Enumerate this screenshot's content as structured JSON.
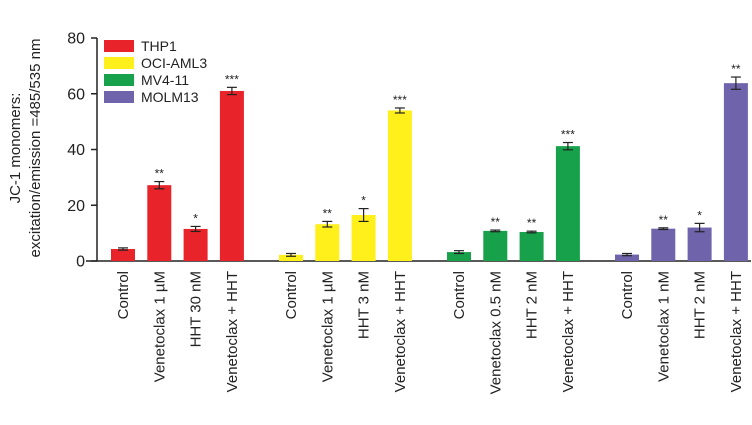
{
  "chart_data": {
    "type": "bar",
    "ylabel_line1": "JC-1 monomers:",
    "ylabel_line2": "excitation/emission =485/535 nm",
    "ylim": [
      0,
      80
    ],
    "yticks": [
      0,
      20,
      40,
      60,
      80
    ],
    "grid": false,
    "legend_position": "top-left",
    "groups": [
      {
        "name": "THP1",
        "color": "#e8232a",
        "bars": [
          {
            "label": "Control",
            "value": 4.3,
            "error": 0.4,
            "sig": ""
          },
          {
            "label": "Venetoclax 1 µM",
            "value": 27.2,
            "error": 1.3,
            "sig": "**"
          },
          {
            "label": "HHT 30 nM",
            "value": 11.5,
            "error": 0.9,
            "sig": "*"
          },
          {
            "label": "Venetoclax + HHT",
            "value": 61.0,
            "error": 1.3,
            "sig": "***"
          }
        ]
      },
      {
        "name": "OCI-AML3",
        "color": "#ffef1a",
        "bars": [
          {
            "label": "Control",
            "value": 2.2,
            "error": 0.5,
            "sig": ""
          },
          {
            "label": "Venetoclax 1 µM",
            "value": 13.2,
            "error": 1.0,
            "sig": "**"
          },
          {
            "label": "HHT 3 nM",
            "value": 16.5,
            "error": 2.3,
            "sig": "*"
          },
          {
            "label": "Venetoclax + HHT",
            "value": 54.0,
            "error": 0.9,
            "sig": "***"
          }
        ]
      },
      {
        "name": "MV4-11",
        "color": "#17a14a",
        "bars": [
          {
            "label": "Control",
            "value": 3.2,
            "error": 0.5,
            "sig": ""
          },
          {
            "label": "Venetoclax 0.5 nM",
            "value": 10.8,
            "error": 0.3,
            "sig": "**"
          },
          {
            "label": "HHT 2 nM",
            "value": 10.4,
            "error": 0.3,
            "sig": "**"
          },
          {
            "label": "Venetoclax + HHT",
            "value": 41.2,
            "error": 1.3,
            "sig": "***"
          }
        ]
      },
      {
        "name": "MOLM13",
        "color": "#6f64ab",
        "bars": [
          {
            "label": "Control",
            "value": 2.3,
            "error": 0.4,
            "sig": ""
          },
          {
            "label": "Venetoclax 1 nM",
            "value": 11.6,
            "error": 0.3,
            "sig": "**"
          },
          {
            "label": "HHT 2 nM",
            "value": 12.0,
            "error": 1.5,
            "sig": "*"
          },
          {
            "label": "Venetoclax + HHT",
            "value": 63.8,
            "error": 2.2,
            "sig": "**"
          }
        ]
      }
    ]
  }
}
